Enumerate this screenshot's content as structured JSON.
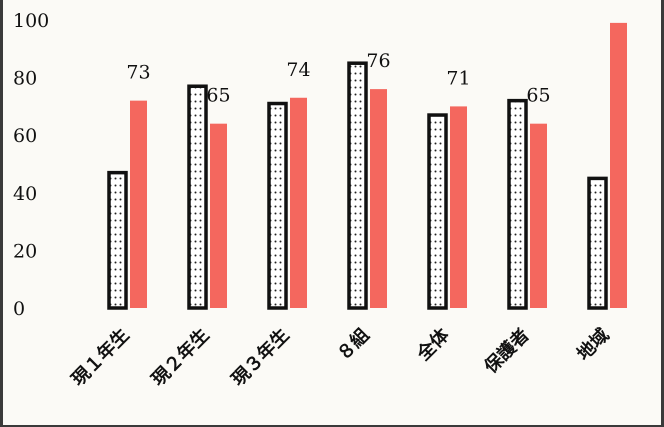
{
  "chart_data": {
    "type": "bar",
    "categories": [
      "現１年生",
      "現２年生",
      "現３年生",
      "８組",
      "全体",
      "保護者",
      "地域"
    ],
    "series": [
      {
        "values": [
          47,
          77,
          71,
          85,
          67,
          72,
          45
        ],
        "color": "#ffffff",
        "pattern": "dotted"
      },
      {
        "values": [
          72,
          64,
          73,
          76,
          70,
          64,
          99
        ],
        "color": "#f4675e"
      }
    ],
    "data_labels": [
      "73",
      "65",
      "74",
      "76",
      "71",
      "65",
      null
    ],
    "ylim": [
      0,
      100
    ],
    "yticks": [
      "0",
      "20",
      "40",
      "60",
      "80",
      "100"
    ],
    "legend": "none",
    "grid": false
  }
}
